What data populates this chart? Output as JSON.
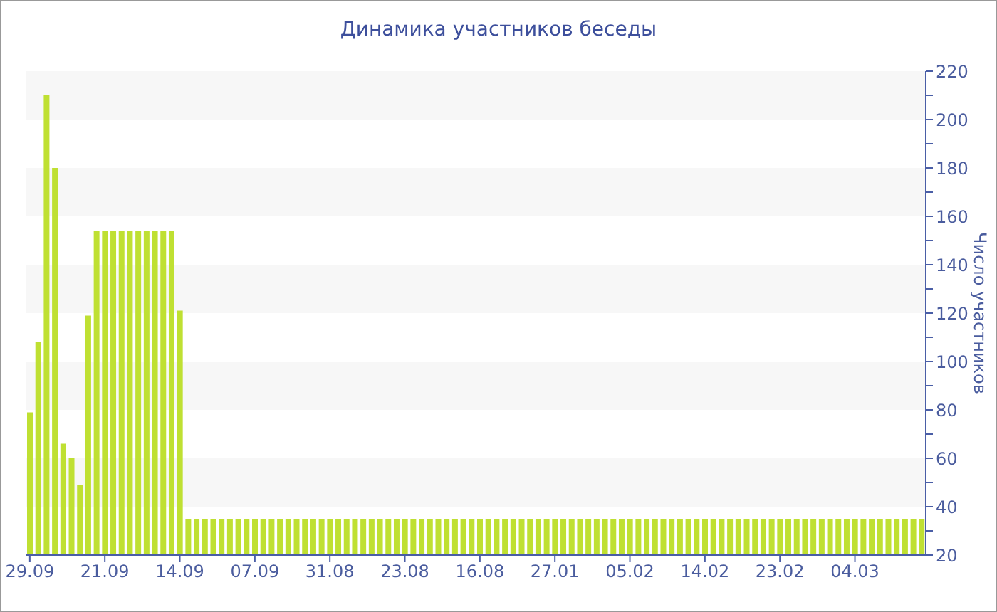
{
  "chart_data": {
    "type": "bar",
    "title": "Динамика участников беседы",
    "ylabel": "Число участников",
    "categories": [
      "29.09",
      null,
      null,
      null,
      null,
      null,
      null,
      null,
      null,
      "21.09",
      null,
      null,
      null,
      null,
      null,
      null,
      null,
      null,
      "14.09",
      null,
      null,
      null,
      null,
      null,
      null,
      null,
      null,
      "07.09",
      null,
      null,
      null,
      null,
      null,
      null,
      null,
      null,
      "31.08",
      null,
      null,
      null,
      null,
      null,
      null,
      null,
      null,
      "23.08",
      null,
      null,
      null,
      null,
      null,
      null,
      null,
      null,
      "16.08",
      null,
      null,
      null,
      null,
      null,
      null,
      null,
      null,
      "27.01",
      null,
      null,
      null,
      null,
      null,
      null,
      null,
      null,
      "05.02",
      null,
      null,
      null,
      null,
      null,
      null,
      null,
      null,
      "14.02",
      null,
      null,
      null,
      null,
      null,
      null,
      null,
      null,
      "23.02",
      null,
      null,
      null,
      null,
      null,
      null,
      null,
      null,
      "04.03",
      null,
      null,
      null,
      null,
      null,
      null,
      null,
      null
    ],
    "values": [
      79,
      108,
      210,
      180,
      66,
      60,
      49,
      119,
      154,
      154,
      154,
      154,
      154,
      154,
      154,
      154,
      154,
      154,
      121,
      35,
      35,
      35,
      35,
      35,
      35,
      35,
      35,
      35,
      35,
      35,
      35,
      35,
      35,
      35,
      35,
      35,
      35,
      35,
      35,
      35,
      35,
      35,
      35,
      35,
      35,
      35,
      35,
      35,
      35,
      35,
      35,
      35,
      35,
      35,
      35,
      35,
      35,
      35,
      35,
      35,
      35,
      35,
      35,
      35,
      35,
      35,
      35,
      35,
      35,
      35,
      35,
      35,
      35,
      35,
      35,
      35,
      35,
      35,
      35,
      35,
      35,
      35,
      35,
      35,
      35,
      35,
      35,
      35,
      35,
      35,
      35,
      35,
      35,
      35,
      35,
      35,
      35,
      35,
      35,
      35,
      35,
      35,
      35,
      35,
      35,
      35,
      35,
      35
    ],
    "color": "#bfe032",
    "ylim": [
      20,
      220
    ],
    "yticks": [
      20,
      {
        "value": 30,
        "label": null
      },
      40,
      {
        "value": 50,
        "label": null
      },
      60,
      {
        "value": 70,
        "label": null
      },
      80,
      {
        "value": 90,
        "label": null
      },
      100,
      {
        "value": 110,
        "label": null
      },
      120,
      {
        "value": 130,
        "label": null
      },
      140,
      {
        "value": 150,
        "label": null
      },
      160,
      {
        "value": 170,
        "label": null
      },
      180,
      {
        "value": 190,
        "label": null
      },
      200,
      {
        "value": 210,
        "label": null
      },
      220
    ],
    "bands": [
      {
        "axis": "y",
        "from": 40,
        "to": 60,
        "color": "#f7f7f7"
      },
      {
        "axis": "y",
        "from": 80,
        "to": 100,
        "color": "#f7f7f7"
      },
      {
        "axis": "y",
        "from": 120,
        "to": 140,
        "color": "#f7f7f7"
      },
      {
        "axis": "y",
        "from": 160,
        "to": 180,
        "color": "#f7f7f7"
      },
      {
        "axis": "y",
        "from": 200,
        "to": 220,
        "color": "#f7f7f7"
      }
    ]
  }
}
